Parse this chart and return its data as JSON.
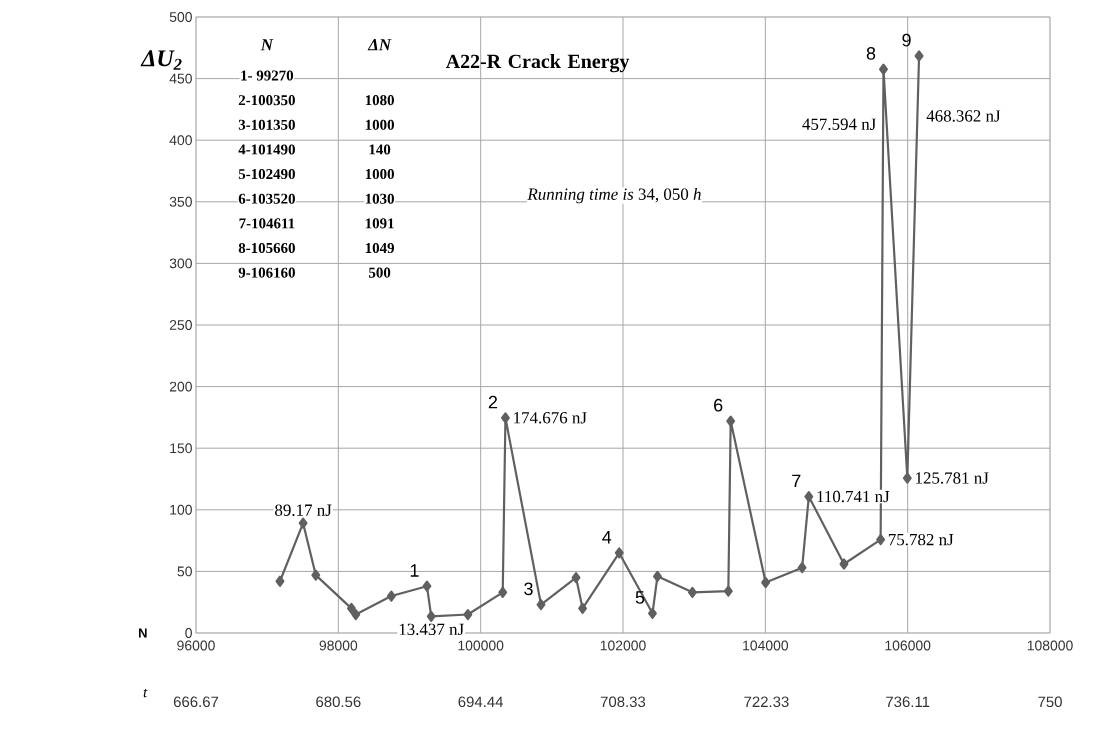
{
  "chart_data": {
    "type": "line",
    "title": "A22-R Crack Energy",
    "xlabel": "N",
    "x2label": "*t*",
    "ylabel": "ΔU$_{2}$",
    "x": [
      97180,
      97505,
      97683,
      98184,
      98245,
      98745,
      99245,
      99305,
      99820,
      100310,
      100348,
      100848,
      101340,
      101432,
      101947,
      102414,
      102484,
      102975,
      103480,
      103513,
      104004,
      104517,
      104611,
      105105,
      105620,
      105660,
      105995,
      106160
    ],
    "series": [
      {
        "color": "#606060",
        "values": [
          42,
          89.17,
          47,
          20,
          15,
          30,
          38,
          13.437,
          15,
          33,
          174.676,
          23,
          45,
          20,
          65,
          16,
          46,
          33,
          34,
          172,
          41,
          53,
          110.741,
          56,
          75.782,
          457.594,
          125.781,
          468.362
        ],
        "value_labels": [
          null,
          "89.17 nJ",
          null,
          null,
          null,
          null,
          null,
          "13.437 nJ",
          null,
          null,
          "174.676 nJ",
          null,
          null,
          null,
          null,
          null,
          null,
          null,
          null,
          null,
          null,
          null,
          "110.741 nJ",
          null,
          "75.782 nJ",
          "457.594 nJ",
          "125.781 nJ",
          "468.362 nJ"
        ]
      }
    ],
    "xlim": [
      96000,
      108000
    ],
    "xticks": [
      96000,
      98000,
      100000,
      102000,
      104000,
      106000,
      108000
    ],
    "x2lim": [
      666.67,
      750
    ],
    "x2ticks": [
      666.67,
      680.56,
      694.44,
      708.33,
      722.33,
      736.11,
      750
    ],
    "ylim": [
      0,
      500
    ],
    "yticks": [
      0,
      50,
      100,
      150,
      200,
      250,
      300,
      350,
      400,
      450,
      500
    ],
    "grid": true,
    "marker": "diamond",
    "line_style": "solid",
    "annotations": [
      {
        "text": "1",
        "x": 99245,
        "y": 38
      },
      {
        "text": "2",
        "x": 100348,
        "y": 174.676
      },
      {
        "text": "3",
        "x": 100848,
        "y": 23
      },
      {
        "text": "4",
        "x": 101947,
        "y": 65
      },
      {
        "text": "5",
        "x": 102414,
        "y": 16
      },
      {
        "text": "6",
        "x": 103513,
        "y": 172
      },
      {
        "text": "7",
        "x": 104611,
        "y": 110.741
      },
      {
        "text": "8",
        "x": 105660,
        "y": 457.594
      },
      {
        "text": "9",
        "x": 106160,
        "y": 468.362
      },
      "*N*",
      "ΔN",
      "**1-  99270**",
      "**2-100350**",
      "**3-101350**",
      "**4-101490**",
      "**5-102490**",
      "**6-103520**",
      "**7-104611**",
      "**8-105660**",
      "**9-106160**",
      "**1080**",
      "**1000**",
      "**140**",
      "**1000**",
      "**1030**",
      "**1091**",
      "**1049**",
      "**500**",
      "*Running time is* 34, 050 *h*"
    ]
  }
}
